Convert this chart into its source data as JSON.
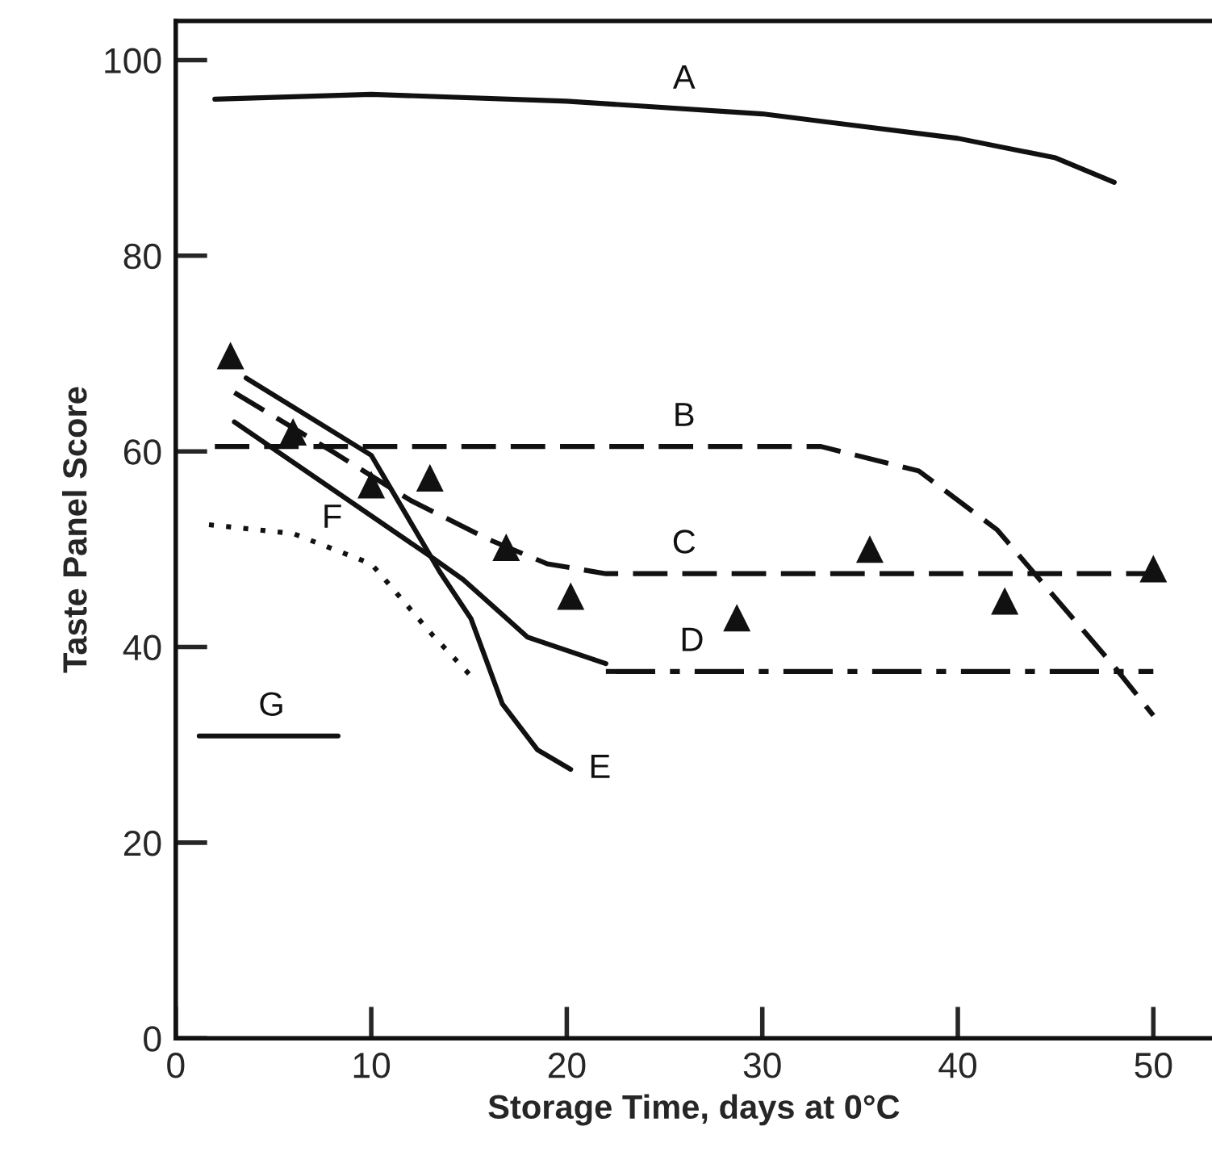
{
  "chart_data": {
    "type": "line",
    "xlabel": "Storage Time, days at 0°C",
    "ylabel": "Taste Panel Score",
    "xlim": [
      0,
      53
    ],
    "ylim": [
      0,
      104
    ],
    "xticks": [
      0,
      10,
      20,
      30,
      40,
      50
    ],
    "yticks": [
      0,
      20,
      40,
      60,
      80,
      100
    ],
    "grid": false,
    "legend": false,
    "marker": "none",
    "series": [
      {
        "color": "#111111",
        "line_style": "solid",
        "x": [
          2,
          10,
          20,
          30,
          40,
          45,
          48
        ],
        "values": [
          96,
          96.5,
          95.8,
          94.5,
          92,
          90,
          87.5
        ]
      },
      {
        "color": "#111111",
        "line_style": "dashed",
        "x": [
          2,
          20,
          33,
          38,
          42,
          45,
          48,
          50
        ],
        "values": [
          60.5,
          60.5,
          60.5,
          58,
          52,
          45,
          38,
          33
        ]
      },
      {
        "color": "#111111",
        "line_style": "dashed",
        "x": [
          3,
          8,
          12,
          16,
          19,
          22,
          50
        ],
        "values": [
          66,
          60,
          55,
          51,
          48.5,
          47.5,
          47.5
        ]
      },
      {
        "color": "#111111",
        "line_style": "solid",
        "x": [
          3,
          13,
          14.7,
          18,
          22
        ],
        "values": [
          63,
          49.3,
          46.9,
          41,
          38.3
        ]
      },
      {
        "color": "#111111",
        "line_style": "dashdot",
        "x": [
          22,
          50
        ],
        "values": [
          37.5,
          37.5
        ]
      },
      {
        "color": "#111111",
        "line_style": "solid",
        "x": [
          3.6,
          10,
          13.5,
          15.1,
          16.7,
          18.5,
          20.2
        ],
        "values": [
          67.5,
          59.6,
          47.7,
          42.9,
          34.2,
          29.5,
          27.5
        ]
      },
      {
        "color": "#111111",
        "line_style": "dotted",
        "x": [
          1.7,
          6,
          10,
          10.7,
          13.1,
          15.3
        ],
        "values": [
          52.5,
          51.6,
          48.5,
          46.9,
          41.3,
          36.6
        ]
      },
      {
        "color": "#111111",
        "line_style": "solid",
        "x": [
          1.2,
          8.3
        ],
        "values": [
          30.9,
          30.9
        ]
      },
      {
        "type": "scatter",
        "marker": "triangle",
        "color": "#111111",
        "x": [
          2.8,
          6,
          10,
          13,
          16.9,
          20.2,
          28.7,
          35.5,
          42.4,
          50
        ],
        "values": [
          69.8,
          62,
          56.6,
          57.3,
          50.2,
          45.2,
          43,
          50,
          44.7,
          48
        ]
      }
    ],
    "annotations": [
      {
        "text": "A",
        "x": 26,
        "y": 95
      },
      {
        "text": "B",
        "x": 26,
        "y": 60.5
      },
      {
        "text": "C",
        "x": 26,
        "y": 47.5
      },
      {
        "text": "D",
        "x": 26.4,
        "y": 37.5
      },
      {
        "text": "E",
        "x": 20.2,
        "y": 27.5
      },
      {
        "text": "F",
        "x": 8,
        "y": 50.1
      },
      {
        "text": "G",
        "x": 4.9,
        "y": 30.9
      }
    ]
  }
}
